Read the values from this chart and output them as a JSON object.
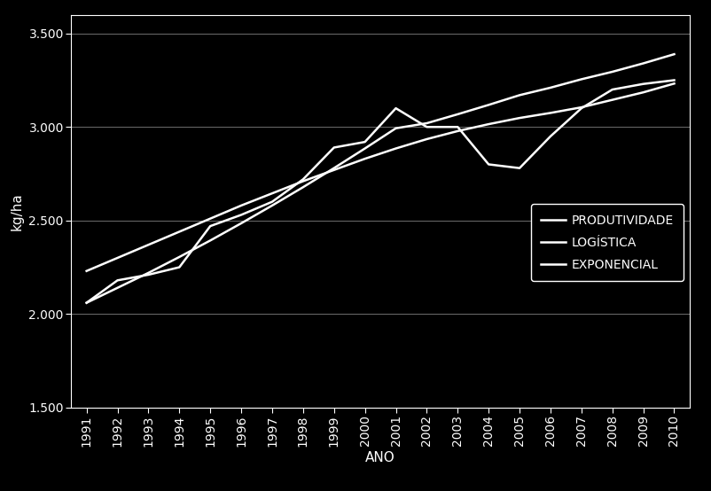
{
  "title": "",
  "xlabel": "ANO",
  "ylabel": "kg/ha",
  "background_color": "#000000",
  "text_color": "#ffffff",
  "line_color": "#ffffff",
  "grid_color": "#ffffff",
  "ylim": [
    1500,
    3600
  ],
  "yticks": [
    1500,
    2000,
    2500,
    3000,
    3500
  ],
  "ytick_labels": [
    "1.500",
    "2.000",
    "2.500",
    "3.000",
    "3.500"
  ],
  "years": [
    1991,
    1992,
    1993,
    1994,
    1995,
    1996,
    1997,
    1998,
    1999,
    2000,
    2001,
    2002,
    2003,
    2004,
    2005,
    2006,
    2007,
    2008,
    2009,
    2010
  ],
  "produtividade": [
    2060,
    2180,
    2210,
    2250,
    2470,
    2530,
    2600,
    2720,
    2890,
    2920,
    3100,
    3000,
    3000,
    2800,
    2780,
    2950,
    3100,
    3200,
    3230,
    3250
  ],
  "logistica": [
    2230,
    2300,
    2370,
    2440,
    2510,
    2580,
    2645,
    2710,
    2770,
    2830,
    2885,
    2935,
    2978,
    3015,
    3048,
    3075,
    3105,
    3145,
    3185,
    3232
  ],
  "exponencial": [
    2060,
    2140,
    2220,
    2305,
    2393,
    2485,
    2580,
    2678,
    2780,
    2885,
    2993,
    3020,
    3068,
    3118,
    3170,
    3210,
    3255,
    3295,
    3340,
    3389
  ],
  "legend_labels": [
    "PRODUTIVIDADE",
    "LOGÍSTICA",
    "EXPONENCIAL"
  ],
  "fontsize": 10,
  "linewidth": 1.8,
  "legend_fontsize": 10
}
